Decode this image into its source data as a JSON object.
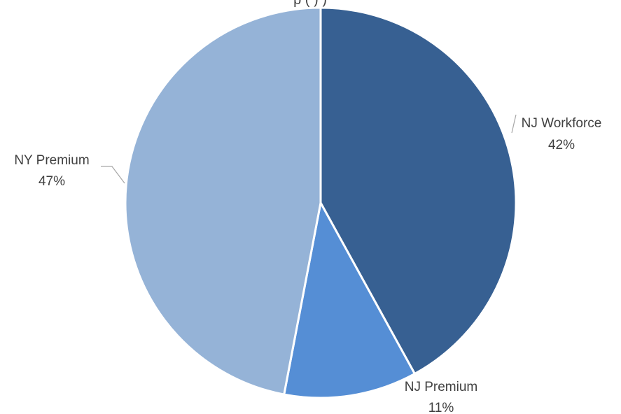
{
  "chart_data": {
    "type": "pie",
    "title_visible_fragment": "p      (  )     )",
    "slices": [
      {
        "name": "NJ Workforce",
        "value": 42,
        "pct_label": "42%",
        "color": "#376092"
      },
      {
        "name": "NJ Premium",
        "value": 11,
        "pct_label": "11%",
        "color": "#558ED5"
      },
      {
        "name": "NY Premium",
        "value": 47,
        "pct_label": "47%",
        "color": "#95B3D7"
      }
    ],
    "start_angle": "12 o'clock",
    "direction": "clockwise",
    "slice_border_color": "#FFFFFF",
    "leader_line_color": "#A6A6A6"
  }
}
